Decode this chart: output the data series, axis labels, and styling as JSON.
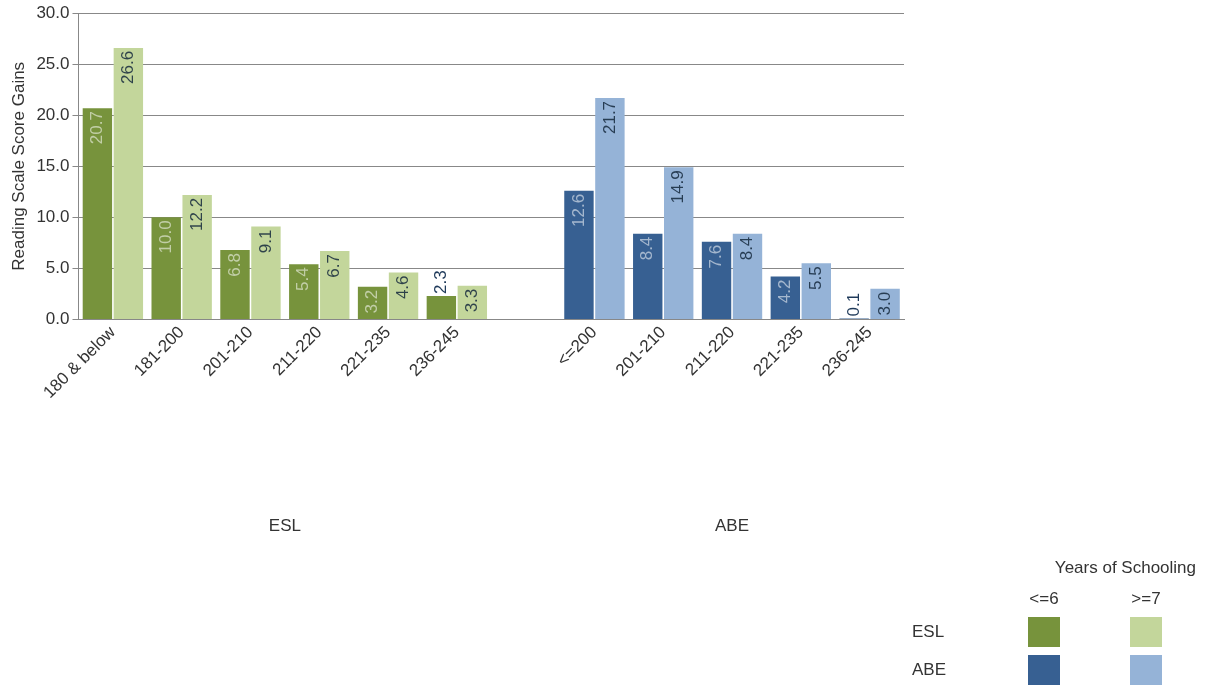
{
  "chart_data": {
    "type": "bar",
    "ylabel": "Reading Scale Score Gains",
    "legend_title": "Years of Schooling",
    "categories": [
      "180 & below",
      "181-200",
      "201-210",
      "211-220",
      "221-235",
      "236-245",
      null,
      "<=200",
      "201-210",
      "211-220",
      "221-235",
      "236-245"
    ],
    "series": [
      {
        "color": "#77933c",
        "values": [
          20.7,
          10.0,
          6.8,
          5.4,
          3.2,
          2.3,
          null,
          null,
          null,
          null,
          null,
          null
        ],
        "value_labels": [
          "20.7",
          "10.0",
          "6.8",
          "5.4",
          "3.2",
          "2.3",
          null,
          null,
          null,
          null,
          null,
          null
        ]
      },
      {
        "color": "#c3d69b",
        "values": [
          26.6,
          12.2,
          9.1,
          6.7,
          4.6,
          3.3,
          null,
          null,
          null,
          null,
          null,
          null
        ],
        "value_labels": [
          "26.6",
          "12.2",
          "9.1",
          "6.7",
          "4.6",
          "3.3",
          null,
          null,
          null,
          null,
          null,
          null
        ]
      },
      {
        "color": "#376092",
        "values": [
          null,
          null,
          null,
          null,
          null,
          null,
          null,
          12.6,
          8.4,
          7.6,
          4.2,
          0.1
        ],
        "value_labels": [
          null,
          null,
          null,
          null,
          null,
          null,
          null,
          "12.6",
          "8.4",
          "7.6",
          "4.2",
          "0.1"
        ]
      },
      {
        "color": "#95b3d7",
        "values": [
          null,
          null,
          null,
          null,
          null,
          null,
          null,
          21.7,
          14.9,
          8.4,
          5.5,
          3.0
        ],
        "value_labels": [
          null,
          null,
          null,
          null,
          null,
          null,
          null,
          "21.7",
          "14.9",
          "8.4",
          "5.5",
          "3.0"
        ]
      }
    ],
    "ylim": [
      0,
      30
    ],
    "yticks": [
      {
        "value": 0,
        "label": "0.0"
      },
      {
        "value": 5,
        "label": "5.0"
      },
      {
        "value": 10,
        "label": "10.0"
      },
      {
        "value": 15,
        "label": "15.0"
      },
      {
        "value": 20,
        "label": "20.0"
      },
      {
        "value": 25,
        "label": "25.0"
      },
      {
        "value": 30,
        "label": "30.0"
      }
    ],
    "grid": "y",
    "annotations": [
      "ESL",
      "ABE",
      "<=6",
      ">=7"
    ]
  }
}
